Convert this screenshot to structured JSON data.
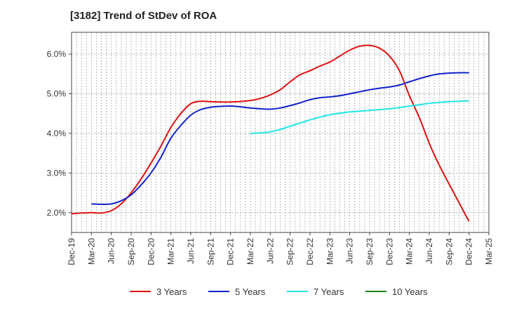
{
  "chart_data": {
    "type": "line",
    "title": "[3182]  Trend of StDev of ROA",
    "xlabel": "",
    "ylabel": "",
    "ylim": [
      1.5,
      6.55
    ],
    "yticks": [
      2.0,
      3.0,
      4.0,
      5.0,
      6.0
    ],
    "ytick_labels": [
      "2.0%",
      "3.0%",
      "4.0%",
      "5.0%",
      "6.0%"
    ],
    "x_labels": [
      "Dec-19",
      "Mar-20",
      "Jun-20",
      "Sep-20",
      "Dec-20",
      "Mar-21",
      "Jun-21",
      "Sep-21",
      "Dec-21",
      "Mar-22",
      "Jun-22",
      "Sep-22",
      "Dec-22",
      "Mar-23",
      "Jun-23",
      "Sep-23",
      "Dec-23",
      "Mar-24",
      "Jun-24",
      "Sep-24",
      "Dec-24",
      "Mar-25"
    ],
    "grid": true,
    "legend_position": "bottom",
    "series": [
      {
        "name": "3 Years",
        "color": "#dd1111",
        "points": [
          [
            0,
            1.97
          ],
          [
            0.5,
            1.99
          ],
          [
            1,
            2.0
          ],
          [
            1.5,
            1.99
          ],
          [
            2,
            2.05
          ],
          [
            2.5,
            2.22
          ],
          [
            3,
            2.5
          ],
          [
            3.5,
            2.85
          ],
          [
            4,
            3.25
          ],
          [
            4.5,
            3.68
          ],
          [
            5,
            4.15
          ],
          [
            5.5,
            4.5
          ],
          [
            6,
            4.75
          ],
          [
            6.5,
            4.81
          ],
          [
            7,
            4.8
          ],
          [
            8,
            4.79
          ],
          [
            9,
            4.83
          ],
          [
            9.5,
            4.88
          ],
          [
            10,
            4.97
          ],
          [
            10.5,
            5.1
          ],
          [
            11,
            5.3
          ],
          [
            11.5,
            5.48
          ],
          [
            12,
            5.58
          ],
          [
            12.5,
            5.7
          ],
          [
            13,
            5.8
          ],
          [
            13.5,
            5.95
          ],
          [
            14,
            6.1
          ],
          [
            14.5,
            6.2
          ],
          [
            15,
            6.22
          ],
          [
            15.5,
            6.15
          ],
          [
            16,
            5.95
          ],
          [
            16.5,
            5.58
          ],
          [
            17,
            4.95
          ],
          [
            17.5,
            4.4
          ],
          [
            18,
            3.75
          ],
          [
            18.5,
            3.2
          ],
          [
            19,
            2.72
          ],
          [
            19.5,
            2.25
          ],
          [
            20,
            1.78
          ]
        ]
      },
      {
        "name": "5 Years",
        "color": "#1122cc",
        "points": [
          [
            1,
            2.22
          ],
          [
            1.5,
            2.21
          ],
          [
            2,
            2.22
          ],
          [
            2.5,
            2.3
          ],
          [
            3,
            2.45
          ],
          [
            3.5,
            2.7
          ],
          [
            4,
            3.0
          ],
          [
            4.5,
            3.4
          ],
          [
            5,
            3.88
          ],
          [
            5.5,
            4.2
          ],
          [
            6,
            4.46
          ],
          [
            6.5,
            4.6
          ],
          [
            7,
            4.66
          ],
          [
            7.5,
            4.68
          ],
          [
            8,
            4.69
          ],
          [
            8.5,
            4.67
          ],
          [
            9,
            4.64
          ],
          [
            9.5,
            4.62
          ],
          [
            10,
            4.61
          ],
          [
            10.5,
            4.64
          ],
          [
            11,
            4.7
          ],
          [
            11.5,
            4.77
          ],
          [
            12,
            4.85
          ],
          [
            12.5,
            4.9
          ],
          [
            13,
            4.92
          ],
          [
            13.5,
            4.95
          ],
          [
            14,
            5.0
          ],
          [
            14.5,
            5.05
          ],
          [
            15,
            5.1
          ],
          [
            15.5,
            5.14
          ],
          [
            16,
            5.17
          ],
          [
            16.5,
            5.22
          ],
          [
            17,
            5.3
          ],
          [
            17.5,
            5.38
          ],
          [
            18,
            5.45
          ],
          [
            18.5,
            5.5
          ],
          [
            19,
            5.52
          ],
          [
            19.5,
            5.53
          ],
          [
            20,
            5.53
          ]
        ]
      },
      {
        "name": "7 Years",
        "color": "#22e5e5",
        "points": [
          [
            9,
            4.0
          ],
          [
            9.5,
            4.01
          ],
          [
            10,
            4.04
          ],
          [
            10.5,
            4.1
          ],
          [
            11,
            4.18
          ],
          [
            11.5,
            4.26
          ],
          [
            12,
            4.34
          ],
          [
            12.5,
            4.41
          ],
          [
            13,
            4.47
          ],
          [
            13.5,
            4.51
          ],
          [
            14,
            4.54
          ],
          [
            14.5,
            4.56
          ],
          [
            15,
            4.58
          ],
          [
            15.5,
            4.6
          ],
          [
            16,
            4.62
          ],
          [
            16.5,
            4.65
          ],
          [
            17,
            4.69
          ],
          [
            17.5,
            4.72
          ],
          [
            18,
            4.76
          ],
          [
            18.5,
            4.78
          ],
          [
            19,
            4.8
          ],
          [
            19.5,
            4.81
          ],
          [
            20,
            4.82
          ]
        ]
      },
      {
        "name": "10 Years",
        "color": "#118811",
        "points": []
      }
    ]
  }
}
